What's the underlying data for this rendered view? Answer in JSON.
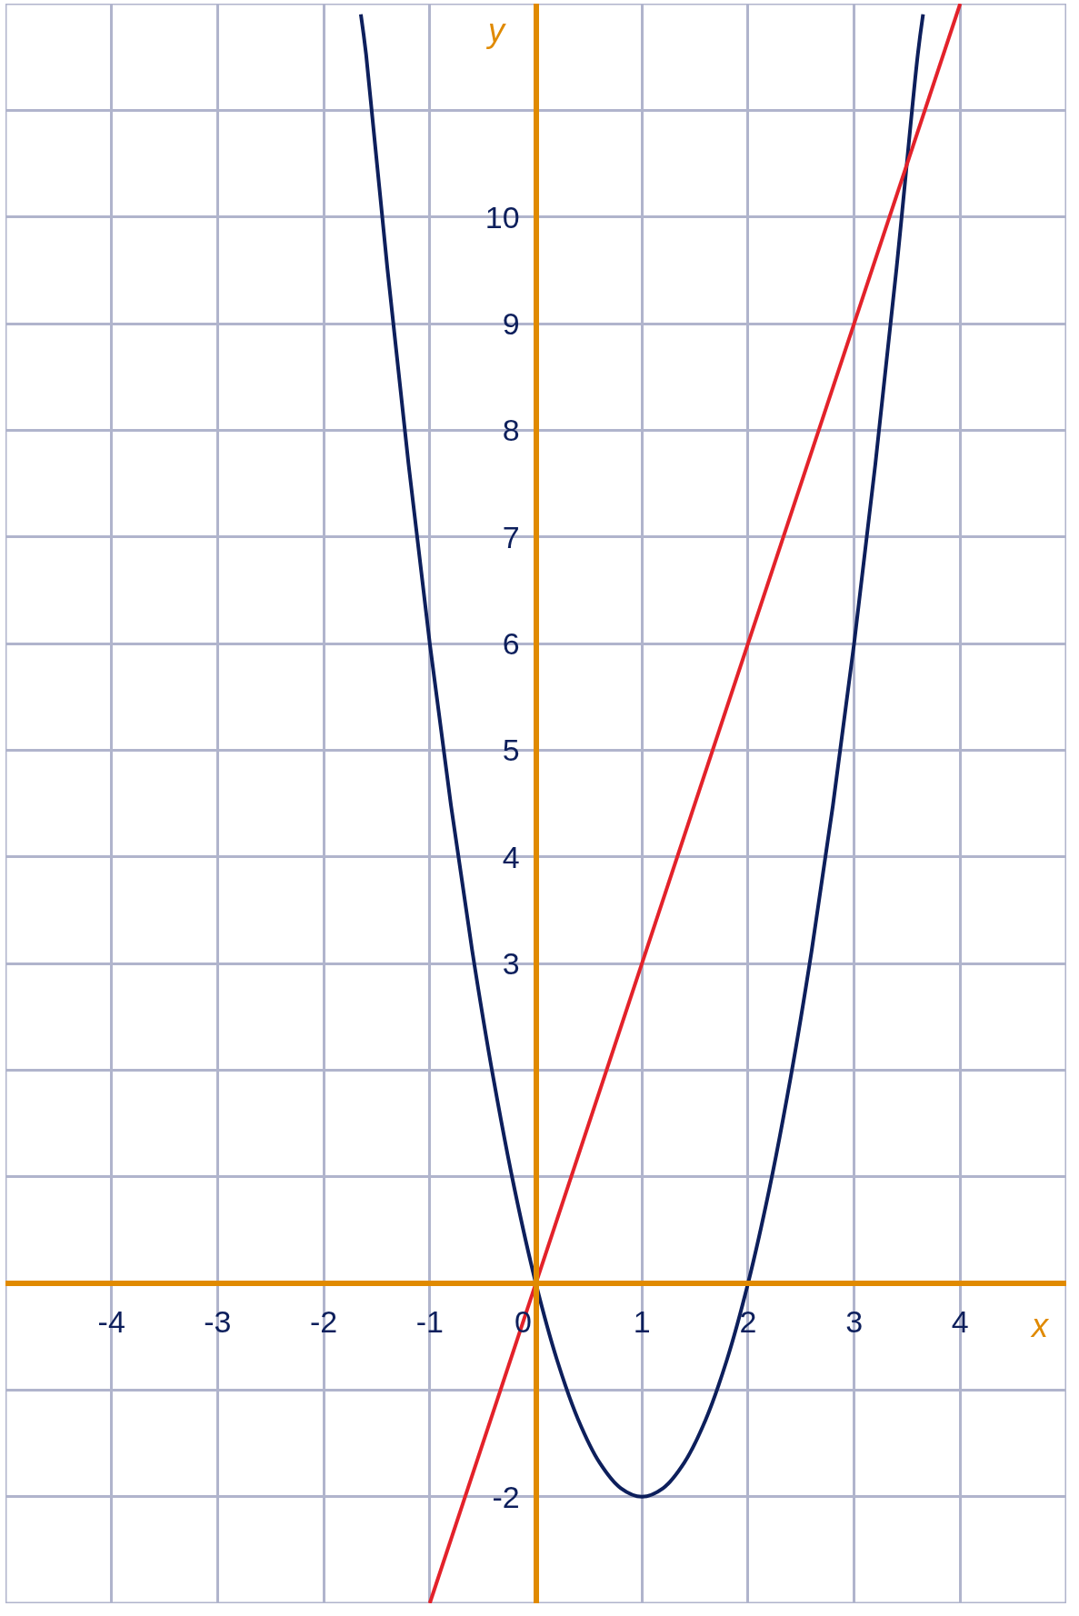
{
  "chart_data": {
    "type": "line",
    "xlabel": "x",
    "ylabel": "y",
    "xlim": [
      -5,
      5
    ],
    "ylim": [
      -3,
      12
    ],
    "xticks": [
      {
        "value": -5,
        "label": null
      },
      -4,
      -3,
      -2,
      -1,
      0,
      1,
      2,
      3,
      4,
      {
        "value": 5,
        "label": null
      }
    ],
    "yticks": [
      {
        "value": -3,
        "label": null
      },
      -2,
      {
        "value": -1,
        "label": null
      },
      {
        "value": 0,
        "label": null
      },
      {
        "value": 1,
        "label": null
      },
      {
        "value": 2,
        "label": null
      },
      3,
      4,
      5,
      6,
      7,
      8,
      9,
      10,
      {
        "value": 11,
        "label": null
      },
      {
        "value": 12,
        "label": null
      }
    ],
    "grid": true,
    "marker": "none",
    "line_style": "solid",
    "series": [
      {
        "color": "#0d1f5c",
        "x": [
          -1.65,
          -1.6,
          -1.4,
          -1.2,
          -1.0,
          -0.8,
          -0.6,
          -0.4,
          -0.2,
          0,
          0.2,
          0.4,
          0.6,
          0.8,
          1.0,
          1.2,
          1.4,
          1.6,
          1.8,
          2.0,
          2.2,
          2.4,
          2.6,
          2.8,
          3.0,
          3.2,
          3.4,
          3.6,
          3.65
        ],
        "values": [
          11.9,
          11.52,
          9.52,
          7.68,
          6,
          4.48,
          3.12,
          1.92,
          0.88,
          0,
          -0.72,
          -1.28,
          -1.68,
          -1.92,
          -2,
          -1.92,
          -1.68,
          -1.28,
          -0.72,
          0,
          0.88,
          1.92,
          3.12,
          4.48,
          6,
          7.68,
          9.52,
          11.52,
          11.9
        ]
      },
      {
        "color": "#e3222a",
        "x": [
          -1,
          4
        ],
        "values": [
          -3,
          12
        ]
      }
    ]
  }
}
